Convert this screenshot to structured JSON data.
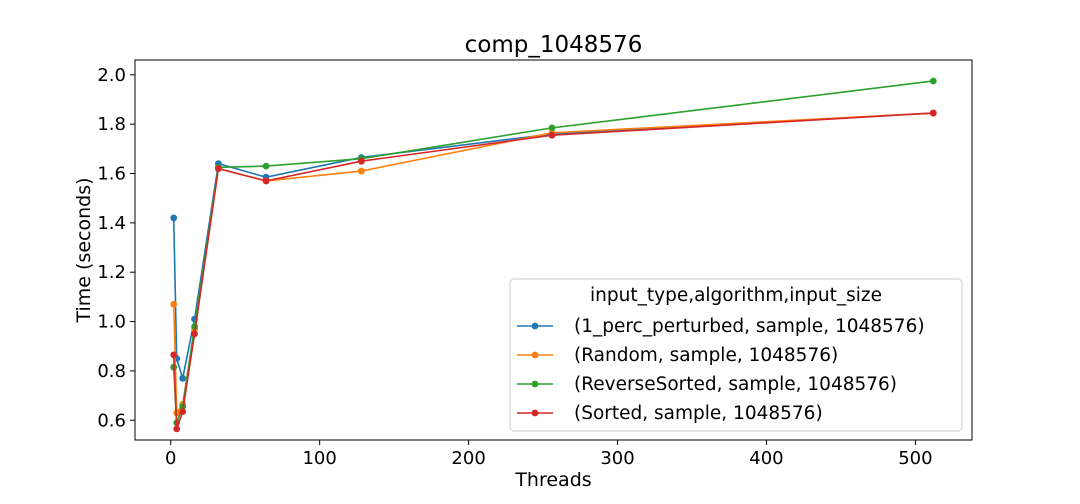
{
  "chart_data": {
    "type": "line",
    "title": "comp_1048576",
    "xlabel": "Threads",
    "ylabel": "Time (seconds)",
    "xlim": [
      -24,
      538
    ],
    "ylim": [
      0.52,
      2.06
    ],
    "xticks": [
      0,
      100,
      200,
      300,
      400,
      500
    ],
    "yticks": [
      0.6,
      0.8,
      1.0,
      1.2,
      1.4,
      1.6,
      1.8,
      2.0
    ],
    "xtick_labels": [
      "0",
      "100",
      "200",
      "300",
      "400",
      "500"
    ],
    "ytick_labels": [
      "0.6",
      "0.8",
      "1.0",
      "1.2",
      "1.4",
      "1.6",
      "1.8",
      "2.0"
    ],
    "grid": false,
    "legend": {
      "title": "input_type,algorithm,input_size",
      "placement": "lower-right"
    },
    "x": [
      2,
      4,
      8,
      16,
      32,
      64,
      128,
      256,
      512
    ],
    "series": [
      {
        "name": "(1_perc_perturbed, sample, 1048576)",
        "color": "#1f77b4",
        "values": [
          1.42,
          0.85,
          0.77,
          1.01,
          1.64,
          1.585,
          1.665,
          1.76,
          1.845
        ]
      },
      {
        "name": "(Random, sample, 1048576)",
        "color": "#ff7f0e",
        "values": [
          1.07,
          0.63,
          0.665,
          0.97,
          1.62,
          1.57,
          1.61,
          1.765,
          1.845
        ]
      },
      {
        "name": "(ReverseSorted, sample, 1048576)",
        "color": "#2ca02c",
        "values": [
          0.815,
          0.59,
          0.655,
          0.98,
          1.625,
          1.63,
          1.66,
          1.785,
          1.975
        ]
      },
      {
        "name": "(Sorted, sample, 1048576)",
        "color": "#d62728",
        "values": [
          0.865,
          0.565,
          0.635,
          0.95,
          1.62,
          1.57,
          1.65,
          1.755,
          1.845
        ]
      }
    ]
  }
}
